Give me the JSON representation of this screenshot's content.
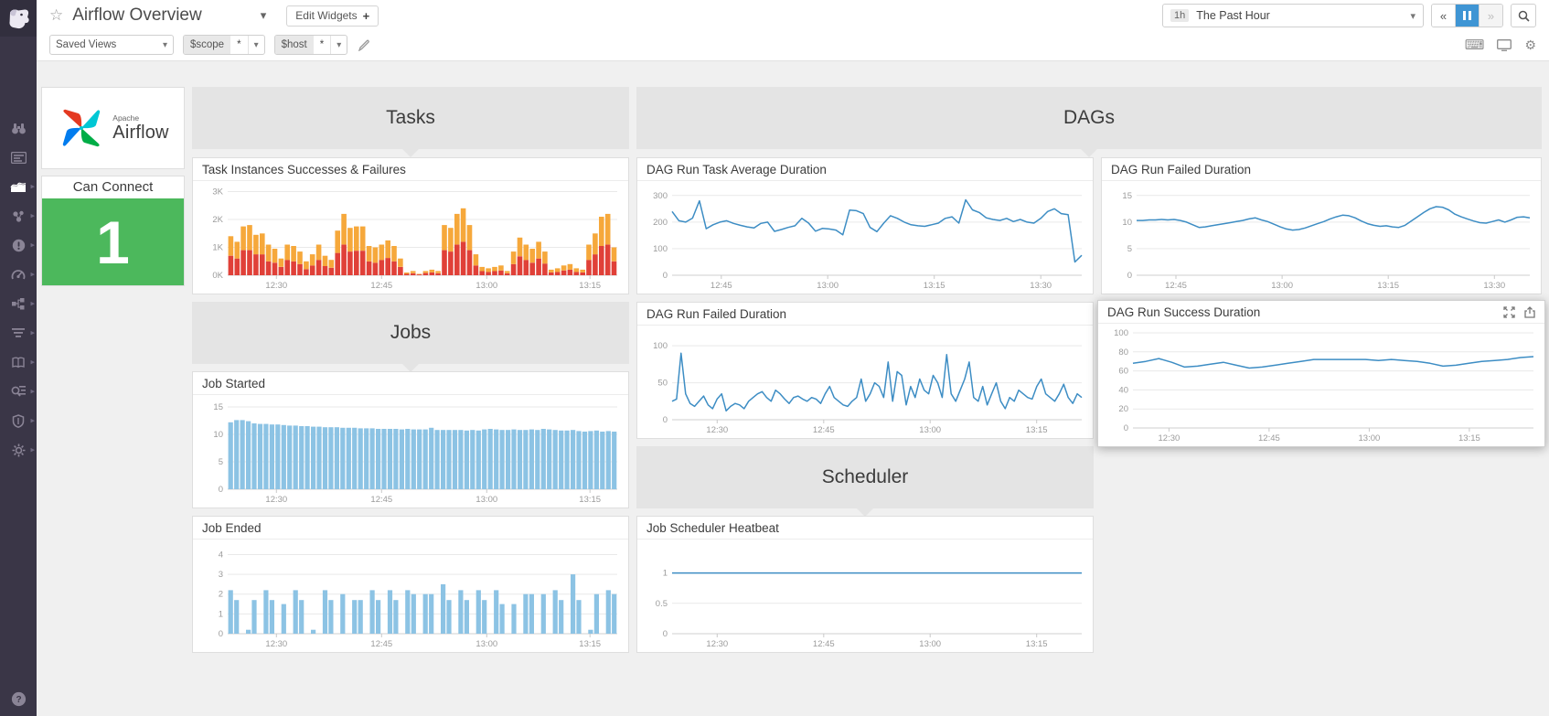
{
  "header": {
    "title": "Airflow Overview",
    "edit_widgets_label": "Edit Widgets",
    "saved_views_label": "Saved Views",
    "template_vars": [
      {
        "name": "$scope",
        "value": "*"
      },
      {
        "name": "$host",
        "value": "*"
      }
    ],
    "time_range": {
      "badge": "1h",
      "label": "The Past Hour"
    }
  },
  "sidebar": {
    "icons": [
      "watchdog",
      "dashboards",
      "metrics",
      "infrastructure",
      "monitors",
      "apm",
      "integrations",
      "logs",
      "notebooks",
      "trace-search",
      "security",
      "settings",
      "help"
    ]
  },
  "sections": {
    "tasks": "Tasks",
    "dags": "DAGs",
    "jobs": "Jobs",
    "scheduler": "Scheduler"
  },
  "logo_widget": {
    "brand_top": "Apache",
    "brand_bottom": "Airflow"
  },
  "can_connect": {
    "title": "Can Connect",
    "value": "1",
    "color": "#4cb85c"
  },
  "colors": {
    "line_blue": "#3d8dc4",
    "bar_blue": "#8cc3e4",
    "failure_red": "#e04038",
    "success_orange": "#f6a83b",
    "green": "#4cb85c",
    "pause_active": "#3f95d4",
    "sidebar_bg": "#3a3647",
    "section_bg": "#e4e4e4"
  },
  "chart_data": [
    {
      "id": "task_instances",
      "type": "stacked_bar",
      "title": "Task Instances Successes & Failures",
      "ylim": [
        0,
        3.05
      ],
      "grid": true,
      "legend": "none",
      "yticks": [
        {
          "v": 0,
          "label": "0K"
        },
        {
          "v": 1,
          "label": "1K"
        },
        {
          "v": 2,
          "label": "2K"
        },
        {
          "v": 3,
          "label": "3K"
        }
      ],
      "xticks": [
        {
          "pos": 0.125,
          "label": "12:30"
        },
        {
          "pos": 0.395,
          "label": "12:45"
        },
        {
          "pos": 0.665,
          "label": "13:00"
        },
        {
          "pos": 0.93,
          "label": "13:15"
        }
      ],
      "series": [
        {
          "name": "failures",
          "color": "#e04038",
          "values": [
            0.7,
            0.6,
            0.9,
            0.9,
            0.75,
            0.75,
            0.5,
            0.45,
            0.3,
            0.55,
            0.5,
            0.4,
            0.22,
            0.35,
            0.55,
            0.33,
            0.27,
            0.8,
            1.1,
            0.85,
            0.88,
            0.88,
            0.5,
            0.45,
            0.55,
            0.62,
            0.5,
            0.3,
            0.05,
            0.07,
            0.03,
            0.08,
            0.1,
            0.07,
            0.9,
            0.85,
            1.1,
            1.2,
            0.9,
            0.35,
            0.15,
            0.12,
            0.15,
            0.17,
            0.07,
            0.4,
            0.68,
            0.55,
            0.45,
            0.6,
            0.42,
            0.1,
            0.12,
            0.17,
            0.2,
            0.12,
            0.1,
            0.55,
            0.75,
            1.05,
            1.1,
            0.5
          ]
        },
        {
          "name": "successes",
          "color": "#f6a83b",
          "values": [
            0.7,
            0.6,
            0.85,
            0.9,
            0.7,
            0.75,
            0.6,
            0.5,
            0.3,
            0.55,
            0.55,
            0.45,
            0.28,
            0.4,
            0.55,
            0.37,
            0.28,
            0.8,
            1.1,
            0.85,
            0.87,
            0.87,
            0.55,
            0.55,
            0.55,
            0.63,
            0.55,
            0.3,
            0.05,
            0.08,
            0.02,
            0.07,
            0.1,
            0.08,
            0.9,
            0.85,
            1.1,
            1.2,
            0.9,
            0.4,
            0.15,
            0.13,
            0.15,
            0.18,
            0.08,
            0.45,
            0.67,
            0.55,
            0.5,
            0.6,
            0.43,
            0.1,
            0.13,
            0.18,
            0.2,
            0.13,
            0.1,
            0.55,
            0.75,
            1.05,
            1.1,
            0.5
          ]
        }
      ]
    },
    {
      "id": "dag_avg",
      "type": "line",
      "title": "DAG Run Task Average Duration",
      "ylim": [
        0,
        320
      ],
      "grid": true,
      "color": "#3d8dc4",
      "yticks": [
        {
          "v": 0,
          "label": "0"
        },
        {
          "v": 100,
          "label": "100"
        },
        {
          "v": 200,
          "label": "200"
        },
        {
          "v": 300,
          "label": "300"
        }
      ],
      "xticks": [
        {
          "pos": 0.12,
          "label": "12:45"
        },
        {
          "pos": 0.38,
          "label": "13:00"
        },
        {
          "pos": 0.64,
          "label": "13:15"
        },
        {
          "pos": 0.9,
          "label": "13:30"
        }
      ],
      "values": [
        240,
        205,
        200,
        215,
        280,
        175,
        190,
        200,
        205,
        195,
        188,
        182,
        178,
        195,
        200,
        165,
        172,
        180,
        186,
        214,
        196,
        166,
        176,
        174,
        170,
        152,
        245,
        243,
        232,
        180,
        164,
        196,
        224,
        214,
        200,
        190,
        186,
        184,
        190,
        196,
        214,
        220,
        196,
        284,
        246,
        236,
        216,
        210,
        206,
        214,
        202,
        210,
        200,
        196,
        214,
        240,
        250,
        232,
        228,
        50,
        75
      ]
    },
    {
      "id": "dag_failed_top",
      "type": "line",
      "title": "DAG Run Failed Duration",
      "ylim": [
        0,
        16
      ],
      "grid": true,
      "color": "#3d8dc4",
      "yticks": [
        {
          "v": 0,
          "label": "0"
        },
        {
          "v": 5,
          "label": "5"
        },
        {
          "v": 10,
          "label": "10"
        },
        {
          "v": 15,
          "label": "15"
        }
      ],
      "xticks": [
        {
          "pos": 0.1,
          "label": "12:45"
        },
        {
          "pos": 0.37,
          "label": "13:00"
        },
        {
          "pos": 0.64,
          "label": "13:15"
        },
        {
          "pos": 0.91,
          "label": "13:30"
        }
      ],
      "values": [
        10.3,
        10.3,
        10.4,
        10.4,
        10.5,
        10.4,
        10.5,
        10.3,
        10.0,
        9.5,
        9.0,
        9.1,
        9.3,
        9.5,
        9.7,
        9.9,
        10.1,
        10.3,
        10.6,
        10.8,
        10.4,
        10.1,
        9.6,
        9.1,
        8.7,
        8.5,
        8.6,
        8.9,
        9.3,
        9.7,
        10.1,
        10.6,
        11.0,
        11.3,
        11.2,
        10.8,
        10.2,
        9.7,
        9.4,
        9.2,
        9.3,
        9.1,
        9.0,
        9.4,
        10.2,
        11.0,
        11.8,
        12.5,
        12.9,
        12.8,
        12.3,
        11.5,
        11.0,
        10.6,
        10.2,
        9.9,
        9.8,
        10.1,
        10.4,
        10.0,
        10.4,
        10.9,
        11.0,
        10.8
      ]
    },
    {
      "id": "dag_failed_mid",
      "type": "line",
      "title": "DAG Run Failed Duration",
      "ylim": [
        0,
        115
      ],
      "grid": true,
      "color": "#3d8dc4",
      "yticks": [
        {
          "v": 0,
          "label": "0"
        },
        {
          "v": 50,
          "label": "50"
        },
        {
          "v": 100,
          "label": "100"
        }
      ],
      "xticks": [
        {
          "pos": 0.11,
          "label": "12:30"
        },
        {
          "pos": 0.37,
          "label": "12:45"
        },
        {
          "pos": 0.63,
          "label": "13:00"
        },
        {
          "pos": 0.89,
          "label": "13:15"
        }
      ],
      "values": [
        25,
        28,
        90,
        35,
        22,
        18,
        25,
        32,
        20,
        15,
        28,
        35,
        12,
        18,
        22,
        20,
        15,
        25,
        30,
        35,
        38,
        30,
        25,
        40,
        35,
        28,
        22,
        30,
        32,
        28,
        25,
        30,
        28,
        22,
        35,
        45,
        30,
        25,
        20,
        18,
        25,
        30,
        55,
        25,
        35,
        50,
        45,
        30,
        78,
        25,
        65,
        60,
        20,
        45,
        30,
        55,
        40,
        35,
        60,
        50,
        30,
        88,
        35,
        25,
        40,
        55,
        78,
        30,
        25,
        45,
        20,
        35,
        50,
        25,
        15,
        30,
        25,
        40,
        35,
        30,
        28,
        45,
        55,
        35,
        30,
        25,
        35,
        48,
        30,
        22,
        35,
        30
      ]
    },
    {
      "id": "dag_success",
      "type": "line",
      "title": "DAG Run Success Duration",
      "ylim": [
        0,
        100
      ],
      "grid": true,
      "color": "#3d8dc4",
      "yticks": [
        {
          "v": 0,
          "label": "0"
        },
        {
          "v": 20,
          "label": "20"
        },
        {
          "v": 40,
          "label": "40"
        },
        {
          "v": 60,
          "label": "60"
        },
        {
          "v": 80,
          "label": "80"
        },
        {
          "v": 100,
          "label": "100"
        }
      ],
      "xticks": [
        {
          "pos": 0.09,
          "label": "12:30"
        },
        {
          "pos": 0.34,
          "label": "12:45"
        },
        {
          "pos": 0.59,
          "label": "13:00"
        },
        {
          "pos": 0.84,
          "label": "13:15"
        }
      ],
      "values": [
        68,
        70,
        73,
        69,
        64,
        65,
        67,
        69,
        66,
        63,
        64,
        66,
        68,
        70,
        72,
        72,
        72,
        72,
        72,
        71,
        72,
        71,
        70,
        68,
        65,
        66,
        68,
        70,
        71,
        72,
        74,
        75
      ]
    },
    {
      "id": "job_started",
      "type": "bar",
      "title": "Job Started",
      "ylim": [
        0,
        15.5
      ],
      "grid": true,
      "color": "#8cc3e4",
      "yticks": [
        {
          "v": 0,
          "label": "0"
        },
        {
          "v": 5,
          "label": "5"
        },
        {
          "v": 10,
          "label": "10"
        },
        {
          "v": 15,
          "label": "15"
        }
      ],
      "xticks": [
        {
          "pos": 0.125,
          "label": "12:30"
        },
        {
          "pos": 0.395,
          "label": "12:45"
        },
        {
          "pos": 0.665,
          "label": "13:00"
        },
        {
          "pos": 0.93,
          "label": "13:15"
        }
      ],
      "values": [
        12.2,
        12.6,
        12.6,
        12.4,
        12.0,
        11.9,
        11.9,
        11.8,
        11.8,
        11.7,
        11.6,
        11.6,
        11.5,
        11.5,
        11.4,
        11.4,
        11.3,
        11.3,
        11.3,
        11.2,
        11.2,
        11.2,
        11.1,
        11.1,
        11.1,
        11.0,
        11.0,
        11.0,
        11.0,
        10.9,
        11.0,
        10.9,
        10.9,
        10.9,
        11.2,
        10.8,
        10.8,
        10.8,
        10.8,
        10.8,
        10.7,
        10.8,
        10.7,
        10.9,
        11.0,
        10.9,
        10.8,
        10.8,
        10.9,
        10.8,
        10.8,
        10.9,
        10.8,
        11.0,
        10.9,
        10.8,
        10.7,
        10.7,
        10.8,
        10.6,
        10.5,
        10.6,
        10.7,
        10.5,
        10.6,
        10.5
      ]
    },
    {
      "id": "job_ended",
      "type": "bar",
      "title": "Job Ended",
      "ylim": [
        0,
        4.3
      ],
      "grid": true,
      "color": "#8cc3e4",
      "yticks": [
        {
          "v": 0,
          "label": "0"
        },
        {
          "v": 1,
          "label": "1"
        },
        {
          "v": 2,
          "label": "2"
        },
        {
          "v": 3,
          "label": "3"
        },
        {
          "v": 4,
          "label": "4"
        }
      ],
      "xticks": [
        {
          "pos": 0.125,
          "label": "12:30"
        },
        {
          "pos": 0.395,
          "label": "12:45"
        },
        {
          "pos": 0.665,
          "label": "13:00"
        },
        {
          "pos": 0.93,
          "label": "13:15"
        }
      ],
      "values": [
        2.2,
        1.7,
        0,
        0.2,
        1.7,
        0,
        2.2,
        1.7,
        0,
        1.5,
        0,
        2.2,
        1.7,
        0,
        0.2,
        0,
        2.2,
        1.7,
        0,
        2.0,
        0,
        1.7,
        1.7,
        0,
        2.2,
        1.7,
        0,
        2.2,
        1.7,
        0,
        2.2,
        2.0,
        0,
        2.0,
        2.0,
        0,
        2.5,
        1.7,
        0,
        2.2,
        1.7,
        0,
        2.2,
        1.7,
        0,
        2.2,
        1.5,
        0,
        1.5,
        0,
        2.0,
        2.0,
        0,
        2.0,
        0,
        2.2,
        1.7,
        0,
        3.0,
        1.7,
        0,
        0.2,
        2.0,
        0,
        2.2,
        2.0
      ]
    },
    {
      "id": "heatbeat",
      "type": "line",
      "title": "Job Scheduler Heatbeat",
      "ylim": [
        0,
        1.4
      ],
      "grid": true,
      "color": "#3d8dc4",
      "yticks": [
        {
          "v": 0,
          "label": "0"
        },
        {
          "v": 0.5,
          "label": "0.5"
        },
        {
          "v": 1,
          "label": "1"
        }
      ],
      "xticks": [
        {
          "pos": 0.11,
          "label": "12:30"
        },
        {
          "pos": 0.37,
          "label": "12:45"
        },
        {
          "pos": 0.63,
          "label": "13:00"
        },
        {
          "pos": 0.89,
          "label": "13:15"
        }
      ],
      "values": [
        1,
        1,
        1,
        1,
        1,
        1,
        1,
        1,
        1,
        1
      ]
    }
  ]
}
